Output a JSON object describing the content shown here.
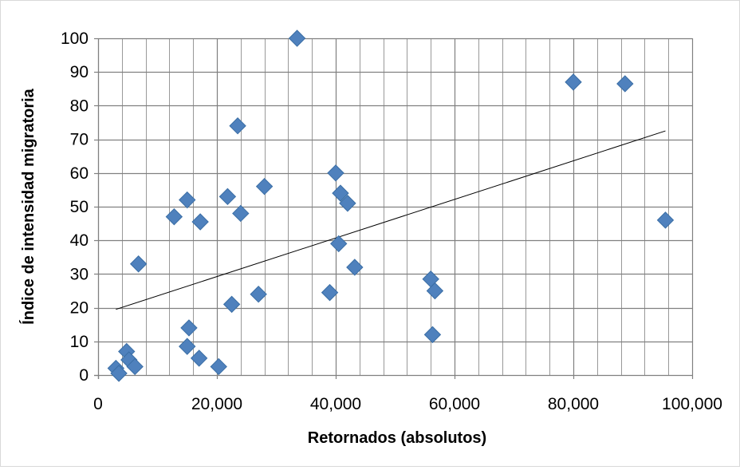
{
  "chart_data": {
    "type": "scatter",
    "title": "",
    "xlabel": "Retornados (absolutos)",
    "ylabel": "Índice de intensidad migratoria",
    "xlim": [
      0,
      100000
    ],
    "ylim": [
      0,
      100
    ],
    "x_ticks": [
      0,
      20000,
      40000,
      60000,
      80000,
      100000
    ],
    "x_tick_labels": [
      "0",
      "20,000",
      "40,000",
      "60,000",
      "80,000",
      "100,000"
    ],
    "y_ticks": [
      0,
      10,
      20,
      30,
      40,
      50,
      60,
      70,
      80,
      90,
      100
    ],
    "y_tick_labels": [
      "0",
      "10",
      "20",
      "30",
      "40",
      "50",
      "60",
      "70",
      "80",
      "90",
      "100"
    ],
    "x_minor_step": 4000,
    "grid": true,
    "marker": "diamond",
    "colors": {
      "marker_fill": "#4f81bd",
      "marker_edge": "#3a6ea5",
      "trendline": "#000000",
      "grid": "#999999"
    },
    "trendline": {
      "type": "linear",
      "x": [
        3000,
        95500
      ],
      "y": [
        19.5,
        72.5
      ]
    },
    "points": [
      {
        "x": 3000,
        "y": 2
      },
      {
        "x": 3500,
        "y": 0.5
      },
      {
        "x": 4800,
        "y": 7
      },
      {
        "x": 5200,
        "y": 4.5
      },
      {
        "x": 6200,
        "y": 2.5
      },
      {
        "x": 6800,
        "y": 33
      },
      {
        "x": 12800,
        "y": 47
      },
      {
        "x": 15000,
        "y": 52
      },
      {
        "x": 15000,
        "y": 8.5
      },
      {
        "x": 15300,
        "y": 14
      },
      {
        "x": 17200,
        "y": 45.5
      },
      {
        "x": 17000,
        "y": 5
      },
      {
        "x": 20300,
        "y": 2.5
      },
      {
        "x": 21800,
        "y": 53
      },
      {
        "x": 22500,
        "y": 21
      },
      {
        "x": 23500,
        "y": 74
      },
      {
        "x": 24000,
        "y": 48
      },
      {
        "x": 27000,
        "y": 24
      },
      {
        "x": 28000,
        "y": 56
      },
      {
        "x": 33500,
        "y": 100
      },
      {
        "x": 39000,
        "y": 24.5
      },
      {
        "x": 40000,
        "y": 60
      },
      {
        "x": 40500,
        "y": 39
      },
      {
        "x": 40800,
        "y": 54
      },
      {
        "x": 42000,
        "y": 51
      },
      {
        "x": 43200,
        "y": 32
      },
      {
        "x": 56000,
        "y": 28.5
      },
      {
        "x": 56700,
        "y": 25
      },
      {
        "x": 56300,
        "y": 12
      },
      {
        "x": 80000,
        "y": 87
      },
      {
        "x": 88700,
        "y": 86.5
      },
      {
        "x": 95500,
        "y": 46
      }
    ]
  }
}
